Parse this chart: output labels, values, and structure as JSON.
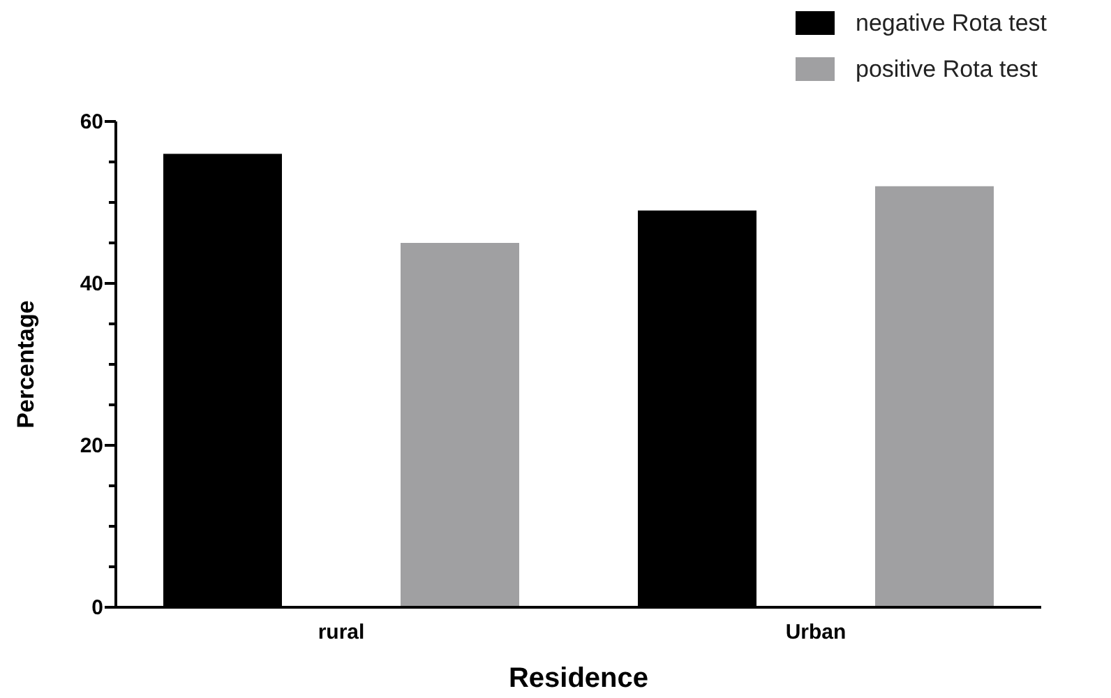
{
  "chart_data": {
    "type": "bar",
    "xlabel": "Residence",
    "ylabel": "Percentage",
    "categories": [
      "rural",
      "Urban"
    ],
    "series": [
      {
        "name": "negative Rota test",
        "color": "#000000",
        "values": [
          56,
          49
        ]
      },
      {
        "name": "positive Rota test",
        "color": "#a0a0a2",
        "values": [
          45,
          52
        ]
      }
    ],
    "ylim": [
      0,
      60
    ],
    "yticks": [
      0,
      {
        "value": 5,
        "label": null
      },
      {
        "value": 10,
        "label": null
      },
      {
        "value": 15,
        "label": null
      },
      20,
      {
        "value": 25,
        "label": null
      },
      {
        "value": 30,
        "label": null
      },
      {
        "value": 35,
        "label": null
      },
      40,
      {
        "value": 45,
        "label": null
      },
      {
        "value": 50,
        "label": null
      },
      {
        "value": 55,
        "label": null
      },
      60
    ],
    "legend": "top right"
  }
}
